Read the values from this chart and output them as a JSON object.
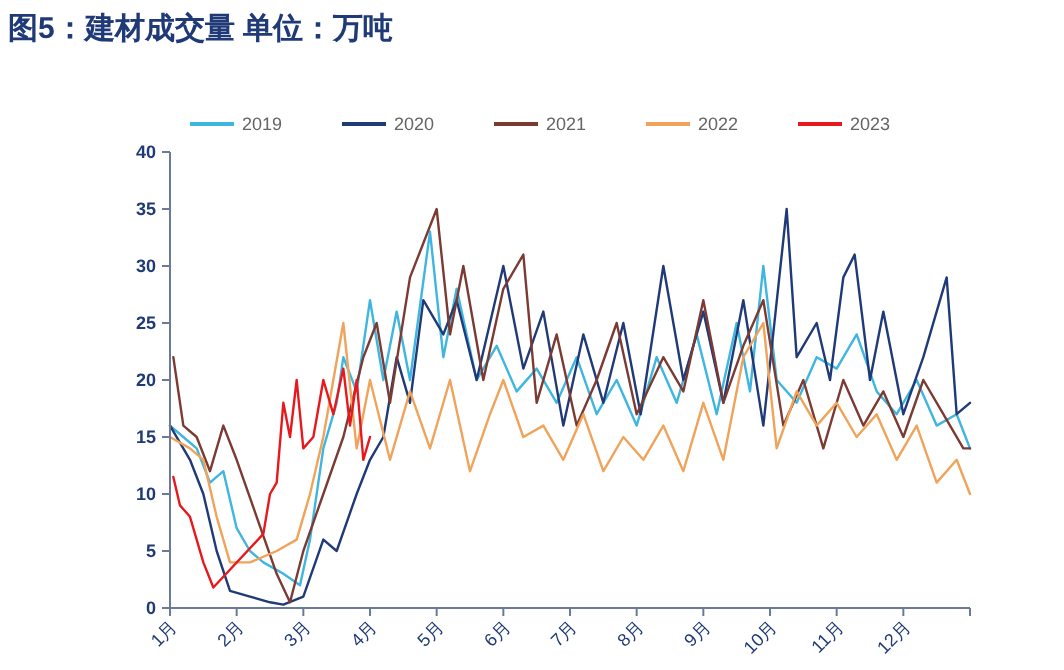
{
  "chart_data": {
    "type": "line",
    "title": "图5：建材成交量   单位：万吨",
    "xlim": [
      1,
      13
    ],
    "xticks": [
      {
        "value": 1,
        "label": "1月"
      },
      {
        "value": 2,
        "label": "2月"
      },
      {
        "value": 3,
        "label": "3月"
      },
      {
        "value": 4,
        "label": "4月"
      },
      {
        "value": 5,
        "label": "5月"
      },
      {
        "value": 6,
        "label": "6月"
      },
      {
        "value": 7,
        "label": "7月"
      },
      {
        "value": 8,
        "label": "8月"
      },
      {
        "value": 9,
        "label": "9月"
      },
      {
        "value": 10,
        "label": "10月"
      },
      {
        "value": 11,
        "label": "11月"
      },
      {
        "value": 12,
        "label": "12月"
      },
      {
        "value": 13,
        "label": null
      }
    ],
    "ylim": [
      0,
      40
    ],
    "yticks": [
      0,
      5,
      10,
      15,
      20,
      25,
      30,
      35,
      40
    ],
    "grid": false,
    "legend": "top",
    "marker": "none",
    "line_style": "solid",
    "series": [
      {
        "name": "2019",
        "color": "#3fb6e0",
        "x": [
          1,
          1.2,
          1.4,
          1.6,
          1.8,
          2,
          2.2,
          2.4,
          2.7,
          2.95,
          3.1,
          3.3,
          3.5,
          3.6,
          3.8,
          4,
          4.2,
          4.4,
          4.6,
          4.9,
          5.1,
          5.3,
          5.6,
          5.9,
          6.2,
          6.5,
          6.8,
          7.1,
          7.4,
          7.7,
          8,
          8.3,
          8.6,
          8.9,
          9.2,
          9.5,
          9.7,
          9.9,
          10.1,
          10.4,
          10.7,
          11,
          11.3,
          11.6,
          11.9,
          12.2,
          12.5,
          12.8,
          13
        ],
        "values": [
          16,
          15,
          14,
          11,
          12,
          7,
          5,
          4,
          3,
          2,
          6,
          14,
          18,
          22,
          19,
          27,
          20,
          26,
          20,
          33,
          22,
          28,
          20,
          23,
          19,
          21,
          18,
          22,
          17,
          20,
          16,
          22,
          18,
          24,
          17,
          25,
          19,
          30,
          20,
          18,
          22,
          21,
          24,
          19,
          17,
          20,
          16,
          17,
          14
        ]
      },
      {
        "name": "2020",
        "color": "#1f3a77",
        "x": [
          1,
          1.3,
          1.5,
          1.7,
          1.9,
          2.2,
          2.5,
          2.7,
          3,
          3.3,
          3.5,
          3.8,
          4,
          4.2,
          4.4,
          4.6,
          4.8,
          5.1,
          5.3,
          5.6,
          6,
          6.3,
          6.6,
          6.9,
          7.2,
          7.5,
          7.8,
          8.06,
          8.4,
          8.7,
          9,
          9.3,
          9.6,
          9.9,
          10.25,
          10.4,
          10.7,
          10.9,
          11.1,
          11.27,
          11.5,
          11.7,
          12,
          12.3,
          12.65,
          12.8,
          13
        ],
        "values": [
          16,
          13,
          10,
          5,
          1.5,
          1,
          0.5,
          0.3,
          1,
          6,
          5,
          10,
          13,
          15,
          22,
          18,
          27,
          24,
          27,
          20,
          30,
          21,
          26,
          16,
          24,
          18,
          25,
          17,
          30,
          20,
          26,
          18,
          27,
          16,
          35,
          22,
          25,
          20,
          29,
          31,
          20,
          26,
          17,
          22,
          29,
          17,
          18
        ]
      },
      {
        "name": "2021",
        "color": "#7b3b33",
        "x": [
          1.05,
          1.2,
          1.4,
          1.6,
          1.8,
          2,
          2.3,
          2.6,
          2.8,
          3,
          3.3,
          3.6,
          3.9,
          4.1,
          4.3,
          4.6,
          5,
          5.2,
          5.4,
          5.7,
          6,
          6.3,
          6.5,
          6.8,
          7.1,
          7.4,
          7.7,
          8,
          8.4,
          8.7,
          9,
          9.3,
          9.6,
          9.9,
          10.2,
          10.5,
          10.8,
          11.1,
          11.4,
          11.7,
          12,
          12.3,
          12.6,
          12.9,
          13
        ],
        "values": [
          22,
          16,
          15,
          12,
          16,
          13,
          8,
          3,
          0.5,
          5,
          10,
          15,
          22,
          25,
          18,
          29,
          35,
          24,
          30,
          20,
          28,
          31,
          18,
          24,
          16,
          20,
          25,
          17,
          22,
          19,
          27,
          18,
          23,
          27,
          16,
          20,
          14,
          20,
          16,
          19,
          15,
          20,
          17,
          14,
          14
        ]
      },
      {
        "name": "2022",
        "color": "#f0a35a",
        "x": [
          1,
          1.3,
          1.5,
          1.7,
          1.9,
          2.2,
          2.6,
          2.9,
          3.1,
          3.3,
          3.6,
          3.8,
          4,
          4.3,
          4.6,
          4.9,
          5.2,
          5.5,
          5.8,
          6,
          6.3,
          6.6,
          6.9,
          7.2,
          7.5,
          7.8,
          8.1,
          8.4,
          8.7,
          9,
          9.3,
          9.6,
          9.9,
          10.1,
          10.4,
          10.7,
          11,
          11.3,
          11.6,
          11.9,
          12.2,
          12.5,
          12.8,
          13
        ],
        "values": [
          15,
          14,
          13,
          8,
          4,
          4,
          5,
          6,
          10,
          15,
          25,
          14,
          20,
          13,
          19,
          14,
          20,
          12,
          17,
          20,
          15,
          16,
          13,
          17,
          12,
          15,
          13,
          16,
          12,
          18,
          13,
          22,
          25,
          14,
          19,
          16,
          18,
          15,
          17,
          13,
          16,
          11,
          13,
          10
        ]
      },
      {
        "name": "2023",
        "color": "#e8191d",
        "x": [
          1.05,
          1.15,
          1.3,
          1.5,
          1.65,
          2.4,
          2.5,
          2.6,
          2.7,
          2.8,
          2.9,
          3,
          3.15,
          3.3,
          3.45,
          3.6,
          3.7,
          3.8,
          3.9,
          4
        ],
        "values": [
          11.5,
          9,
          8,
          4,
          1.8,
          6.5,
          10,
          11,
          18,
          15,
          20,
          14,
          15,
          20,
          17,
          21,
          16,
          20,
          13,
          15
        ]
      }
    ]
  }
}
